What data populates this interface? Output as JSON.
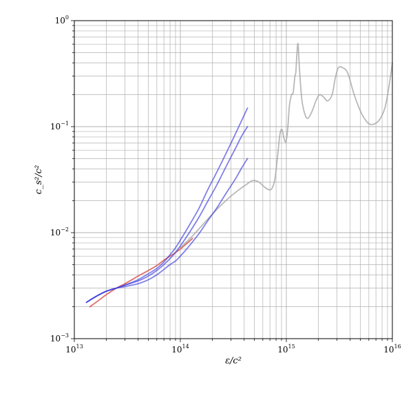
{
  "chart_data": {
    "type": "line",
    "title": "",
    "xlabel": "ε/c²",
    "ylabel": "c_s²/c²",
    "xscale": "log",
    "yscale": "log",
    "xlim": [
      10000000000000.0,
      1e+16
    ],
    "ylim": [
      0.001,
      1
    ],
    "grid": true,
    "legend": "none",
    "x_ticks": [
      {
        "value": 10000000000000.0,
        "base": "10",
        "exp": "13"
      },
      {
        "value": 100000000000000.0,
        "base": "10",
        "exp": "14"
      },
      {
        "value": 1000000000000000.0,
        "base": "10",
        "exp": "15"
      },
      {
        "value": 1e+16,
        "base": "10",
        "exp": "16"
      }
    ],
    "y_ticks": [
      {
        "value": 0.001,
        "base": "10",
        "exp": "−3"
      },
      {
        "value": 0.01,
        "base": "10",
        "exp": "−2"
      },
      {
        "value": 0.1,
        "base": "10",
        "exp": "−1"
      },
      {
        "value": 1,
        "base": "10",
        "exp": "0"
      }
    ],
    "series": [
      {
        "color": "#a0a0a0",
        "opacity": 0.75,
        "x": [
          100000000000000.0,
          130000000000000.0,
          170000000000000.0,
          220000000000000.0,
          280000000000000.0,
          350000000000000.0,
          420000000000000.0,
          480000000000000.0,
          550000000000000.0,
          620000000000000.0,
          680000000000000.0,
          730000000000000.0,
          780000000000000.0,
          830000000000000.0,
          870000000000000.0,
          910000000000000.0,
          950000000000000.0,
          990000000000000.0,
          1030000000000000.0,
          1070000000000000.0,
          1120000000000000.0,
          1160000000000000.0,
          1200000000000000.0,
          1230000000000000.0,
          1260000000000000.0,
          1290000000000000.0,
          1330000000000000.0,
          1400000000000000.0,
          1500000000000000.0,
          1600000000000000.0,
          1750000000000000.0,
          1900000000000000.0,
          2050000000000000.0,
          2250000000000000.0,
          2450000000000000.0,
          2700000000000000.0,
          2900000000000000.0,
          3100000000000000.0,
          3400000000000000.0,
          3800000000000000.0,
          4300000000000000.0,
          5000000000000000.0,
          5800000000000000.0,
          6500000000000000.0,
          7500000000000000.0,
          8500000000000000.0,
          9300000000000000.0,
          1e+16
        ],
        "y": [
          0.0072,
          0.0093,
          0.0125,
          0.0165,
          0.0208,
          0.025,
          0.0285,
          0.031,
          0.03,
          0.027,
          0.0255,
          0.026,
          0.032,
          0.055,
          0.085,
          0.094,
          0.078,
          0.072,
          0.095,
          0.16,
          0.2,
          0.21,
          0.29,
          0.33,
          0.5,
          0.6,
          0.35,
          0.18,
          0.13,
          0.12,
          0.14,
          0.175,
          0.2,
          0.19,
          0.175,
          0.2,
          0.29,
          0.36,
          0.36,
          0.32,
          0.21,
          0.14,
          0.11,
          0.105,
          0.115,
          0.15,
          0.24,
          0.4
        ]
      },
      {
        "color": "#d9544d",
        "opacity": 0.85,
        "x": [
          14000000000000.0,
          17000000000000.0,
          20000000000000.0,
          25000000000000.0,
          30000000000000.0,
          35000000000000.0,
          40000000000000.0,
          50000000000000.0,
          60000000000000.0,
          70000000000000.0,
          80000000000000.0,
          90000000000000.0,
          100000000000000.0,
          115000000000000.0,
          130000000000000.0
        ],
        "y": [
          0.002,
          0.0023,
          0.0026,
          0.003,
          0.0033,
          0.0036,
          0.0039,
          0.0044,
          0.0049,
          0.0055,
          0.006,
          0.0065,
          0.007,
          0.0079,
          0.0088
        ]
      },
      {
        "color": "#3b3bdf",
        "opacity": 0.65,
        "x": [
          13000000000000.0,
          16000000000000.0,
          20000000000000.0,
          25000000000000.0,
          30000000000000.0,
          40000000000000.0,
          50000000000000.0,
          60000000000000.0,
          70000000000000.0,
          80000000000000.0,
          90000000000000.0,
          100000000000000.0,
          120000000000000.0,
          150000000000000.0,
          180000000000000.0,
          220000000000000.0,
          270000000000000.0,
          330000000000000.0,
          380000000000000.0,
          430000000000000.0
        ],
        "y": [
          0.0022,
          0.0025,
          0.0028,
          0.003,
          0.0032,
          0.0036,
          0.0041,
          0.0046,
          0.0053,
          0.0062,
          0.0072,
          0.0085,
          0.0115,
          0.017,
          0.025,
          0.037,
          0.056,
          0.085,
          0.115,
          0.15
        ]
      },
      {
        "color": "#3b3bdf",
        "opacity": 0.65,
        "x": [
          13000000000000.0,
          16000000000000.0,
          20000000000000.0,
          25000000000000.0,
          30000000000000.0,
          40000000000000.0,
          50000000000000.0,
          60000000000000.0,
          70000000000000.0,
          80000000000000.0,
          90000000000000.0,
          100000000000000.0,
          120000000000000.0,
          150000000000000.0,
          180000000000000.0,
          220000000000000.0,
          270000000000000.0,
          330000000000000.0,
          380000000000000.0,
          430000000000000.0
        ],
        "y": [
          0.0022,
          0.0025,
          0.0028,
          0.003,
          0.0032,
          0.0035,
          0.0039,
          0.0044,
          0.005,
          0.0057,
          0.0065,
          0.0075,
          0.0098,
          0.014,
          0.0195,
          0.028,
          0.042,
          0.062,
          0.082,
          0.1
        ]
      },
      {
        "color": "#3b3bdf",
        "opacity": 0.65,
        "x": [
          13000000000000.0,
          16000000000000.0,
          20000000000000.0,
          25000000000000.0,
          30000000000000.0,
          40000000000000.0,
          50000000000000.0,
          60000000000000.0,
          70000000000000.0,
          80000000000000.0,
          90000000000000.0,
          100000000000000.0,
          120000000000000.0,
          150000000000000.0,
          180000000000000.0,
          220000000000000.0,
          270000000000000.0,
          330000000000000.0,
          380000000000000.0,
          430000000000000.0
        ],
        "y": [
          0.0022,
          0.0025,
          0.0028,
          0.003,
          0.0031,
          0.0033,
          0.0036,
          0.004,
          0.0045,
          0.005,
          0.0054,
          0.006,
          0.0074,
          0.0098,
          0.0128,
          0.017,
          0.0235,
          0.032,
          0.041,
          0.05
        ]
      }
    ]
  }
}
